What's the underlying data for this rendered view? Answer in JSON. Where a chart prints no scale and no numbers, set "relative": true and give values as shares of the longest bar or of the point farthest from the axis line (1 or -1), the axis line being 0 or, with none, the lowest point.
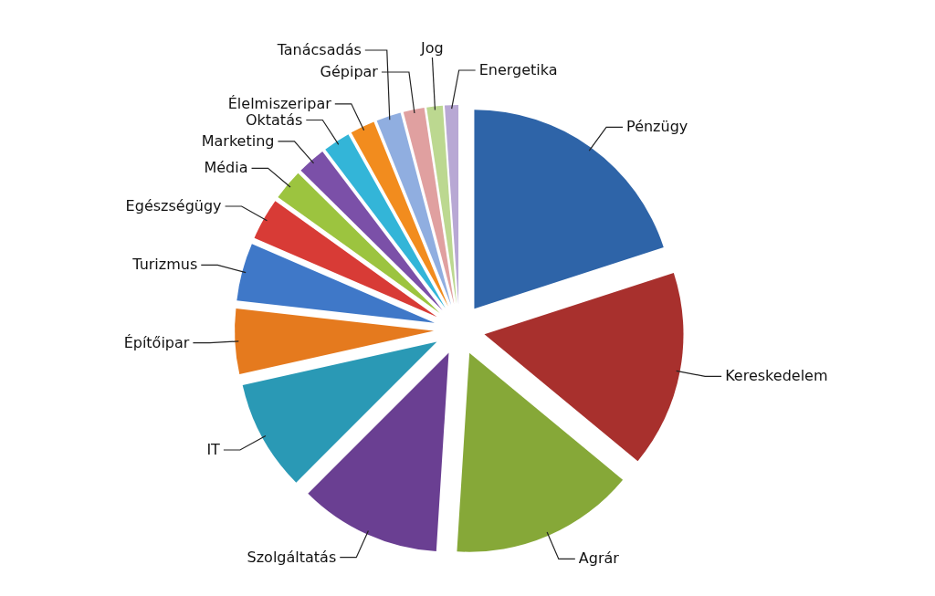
{
  "chart_data": {
    "type": "pie",
    "relative": true,
    "legend": false,
    "categories": [
      "Pénzügy",
      "Kereskedelem",
      "Agrár",
      "Szolgáltatás",
      "IT",
      "Építőipar",
      "Turizmus",
      "Egészségügy",
      "Média",
      "Marketing",
      "Oktatás",
      "Élelmiszeripar",
      "Tanácsadás",
      "Gépipar",
      "Jog",
      "Energetika"
    ],
    "values": [
      20,
      16,
      15,
      11.5,
      9,
      5.3,
      4.7,
      3.4,
      2.5,
      2.3,
      2.2,
      2,
      2,
      1.7,
      1.3,
      1.1
    ],
    "colors": [
      "#2e64a8",
      "#a8302d",
      "#86a838",
      "#6a3f92",
      "#2a99b5",
      "#e57a1e",
      "#3f78c8",
      "#d83b36",
      "#9cc43f",
      "#7b50a8",
      "#33b5d8",
      "#f28c1e",
      "#90aee0",
      "#e0a0a0",
      "#bcd890",
      "#b8a8d4"
    ]
  }
}
